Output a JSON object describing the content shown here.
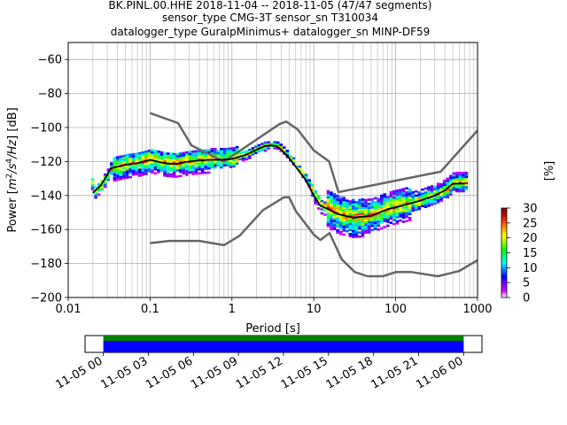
{
  "chart_data": {
    "type": "heatmap",
    "title_lines": [
      "BK.PINL.00.HHE   2018-11-04 -- 2018-11-05  (47/47 segments)",
      "sensor_type CMG-3T sensor_sn T310034",
      "datalogger_type GuralpMinimus+ datalogger_sn MINP-DF59"
    ],
    "xlabel": "Period [s]",
    "ylabel_parts": [
      "Power [",
      "m",
      "2",
      "/s",
      "4",
      "/Hz",
      "] [dB]"
    ],
    "x_scale": "log",
    "xlim": [
      0.01,
      1000
    ],
    "ylim": [
      -200,
      -50
    ],
    "xticks": [
      {
        "v": 0.01,
        "label": "0.01"
      },
      {
        "v": 0.1,
        "label": "0.1"
      },
      {
        "v": 1,
        "label": "1"
      },
      {
        "v": 10,
        "label": "10"
      },
      {
        "v": 100,
        "label": "100"
      },
      {
        "v": 1000,
        "label": "1000"
      }
    ],
    "yticks": [
      {
        "v": -60,
        "label": "−60"
      },
      {
        "v": -80,
        "label": "−80"
      },
      {
        "v": -100,
        "label": "−100"
      },
      {
        "v": -120,
        "label": "−120"
      },
      {
        "v": -140,
        "label": "−140"
      },
      {
        "v": -160,
        "label": "−160"
      },
      {
        "v": -180,
        "label": "−180"
      },
      {
        "v": -200,
        "label": "−200"
      }
    ],
    "grid": true,
    "model_color": "#666666",
    "mode_color": "#000000",
    "high_noise_model": [
      [
        0.1,
        -91.5
      ],
      [
        0.22,
        -97.4
      ],
      [
        0.32,
        -110.5
      ],
      [
        0.8,
        -120
      ],
      [
        3.8,
        -98
      ],
      [
        4.6,
        -96.5
      ],
      [
        6.3,
        -101
      ],
      [
        10,
        -113.5
      ],
      [
        15.4,
        -120
      ],
      [
        20,
        -138
      ],
      [
        354.8,
        -126
      ],
      [
        10000,
        -48
      ]
    ],
    "low_noise_model": [
      [
        0.1,
        -168
      ],
      [
        0.17,
        -166.7
      ],
      [
        0.4,
        -166.7
      ],
      [
        0.8,
        -169.2
      ],
      [
        1.24,
        -163.7
      ],
      [
        2.4,
        -148.6
      ],
      [
        4.3,
        -141.1
      ],
      [
        5,
        -141.1
      ],
      [
        6,
        -149
      ],
      [
        10,
        -163
      ],
      [
        12,
        -166.2
      ],
      [
        15.6,
        -162.1
      ],
      [
        21.9,
        -177.5
      ],
      [
        31.6,
        -185
      ],
      [
        45,
        -187.5
      ],
      [
        70,
        -187.5
      ],
      [
        101,
        -185
      ],
      [
        154,
        -185
      ],
      [
        328,
        -187.5
      ],
      [
        600,
        -184.4
      ],
      [
        1000,
        -178
      ]
    ],
    "mode_line": [
      [
        0.02,
        -138.5
      ],
      [
        0.025,
        -134
      ],
      [
        0.03,
        -128
      ],
      [
        0.033,
        -124
      ],
      [
        0.05,
        -122
      ],
      [
        0.07,
        -121
      ],
      [
        0.1,
        -119
      ],
      [
        0.15,
        -121
      ],
      [
        0.2,
        -121.5
      ],
      [
        0.3,
        -120
      ],
      [
        0.5,
        -119
      ],
      [
        0.8,
        -119
      ],
      [
        1,
        -118.5
      ],
      [
        1.5,
        -116
      ],
      [
        2,
        -113
      ],
      [
        2.5,
        -111
      ],
      [
        3,
        -110.5
      ],
      [
        3.5,
        -111
      ],
      [
        4,
        -113
      ],
      [
        5,
        -118
      ],
      [
        6,
        -123
      ],
      [
        8,
        -131
      ],
      [
        10,
        -140
      ],
      [
        12,
        -146
      ],
      [
        15,
        -148
      ],
      [
        20,
        -151
      ],
      [
        30,
        -153
      ],
      [
        50,
        -152
      ],
      [
        80,
        -148
      ],
      [
        120,
        -146
      ],
      [
        200,
        -143
      ],
      [
        300,
        -140
      ],
      [
        400,
        -137
      ],
      [
        500,
        -133
      ],
      [
        700,
        -133
      ]
    ],
    "colorbar": {
      "label": "[%]",
      "min": 0,
      "max": 30,
      "ticks": [
        "0",
        "5",
        "10",
        "15",
        "20",
        "25",
        "30"
      ],
      "colors": [
        "#ffffff",
        "#d400ff",
        "#7a00ff",
        "#0000ff",
        "#0080ff",
        "#00ffff",
        "#00ff80",
        "#00ff00",
        "#a0ff00",
        "#ffff00",
        "#ffa000",
        "#ff4000",
        "#cc0000",
        "#800000"
      ]
    },
    "coverage": {
      "ticks": [
        "11-05 00",
        "11-05 03",
        "11-05 06",
        "11-05 09",
        "11-05 12",
        "11-05 15",
        "11-05 18",
        "11-05 21",
        "11-06 00"
      ],
      "data_color": "#0000ff",
      "segment_color": "#008000",
      "start_frac": 0.046,
      "end_frac": 0.954
    }
  }
}
